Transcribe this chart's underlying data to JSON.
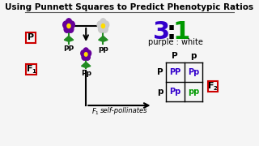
{
  "title": "Using Punnett Squares to Predict Phenotypic Ratios",
  "title_fontsize": 7.5,
  "bg_color": "#f0f0f0",
  "ratio_3_color": "#3300cc",
  "ratio_1_color": "#009900",
  "ratio_fontsize": 22,
  "ratio_label": "purple : white",
  "ratio_label_fontsize": 7,
  "box_color": "#cc0000",
  "punnett_col_labels": [
    "P",
    "p"
  ],
  "punnett_row_labels": [
    "P",
    "p"
  ],
  "punnett_cells": [
    [
      "PP",
      "Pp"
    ],
    [
      "Pp",
      "pp"
    ]
  ],
  "punnett_cell_colors": [
    [
      "#3300cc",
      "#3300cc"
    ],
    [
      "#3300cc",
      "#009900"
    ]
  ],
  "purple_color": "#660099",
  "white_color": "#cccccc",
  "green_color": "#228B22",
  "stem_color": "#228B22"
}
